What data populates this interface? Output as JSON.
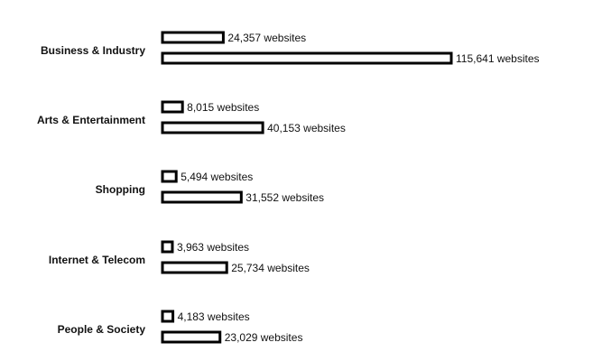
{
  "chart_data": {
    "type": "bar",
    "orientation": "horizontal",
    "categories": [
      "Business & Industry",
      "Arts & Entertainment",
      "Shopping",
      "Internet & Telecom",
      "People & Society"
    ],
    "series": [
      {
        "values": [
          24357,
          8015,
          5494,
          3963,
          4183
        ],
        "labels": [
          "24,357 websites",
          "8,015 websites",
          "5,494 websites",
          "3,963 websites",
          "4,183 websites"
        ]
      },
      {
        "values": [
          115641,
          40153,
          31552,
          25734,
          23029
        ],
        "labels": [
          "115,641 websites",
          "40,153 websites",
          "31,552 websites",
          "25,734 websites",
          "23,029 websites"
        ]
      }
    ],
    "bar_fill": "#ffffff",
    "bar_stroke": "#000000",
    "xlim": [
      0,
      115641
    ],
    "grid": false,
    "legend": "none"
  }
}
